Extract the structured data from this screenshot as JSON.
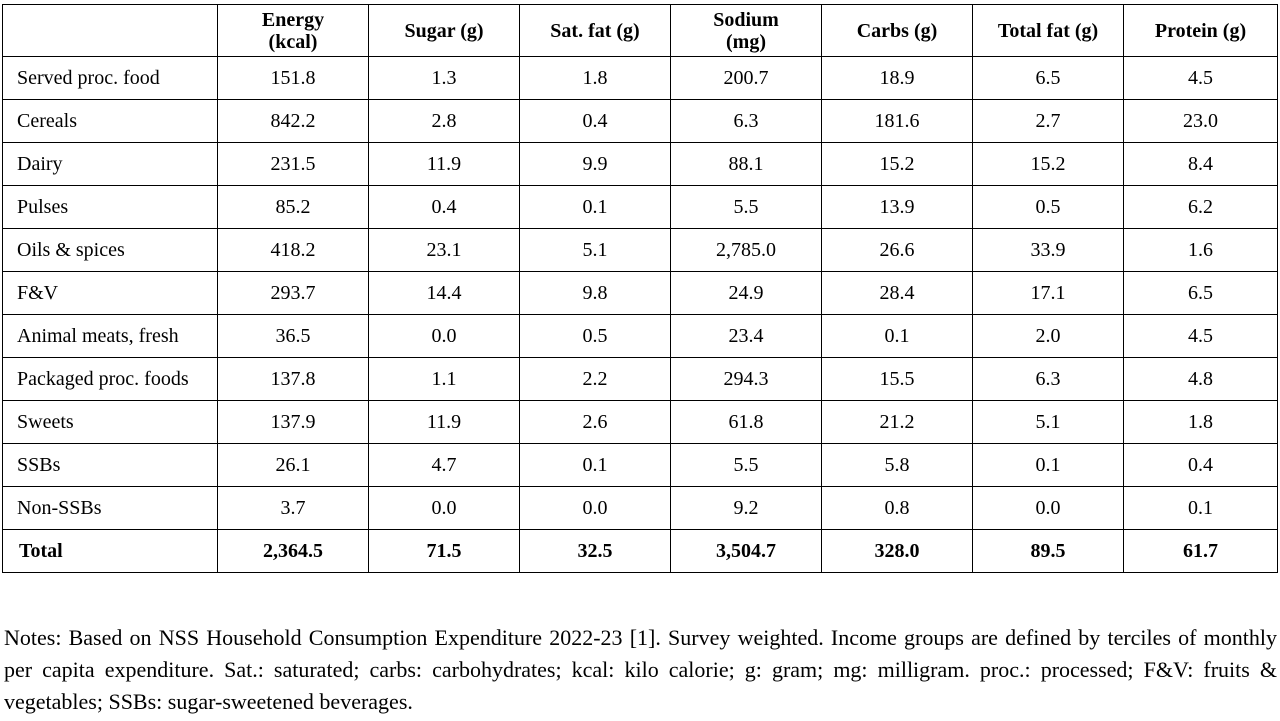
{
  "table": {
    "headers": [
      "",
      "Energy (kcal)",
      "Sugar (g)",
      "Sat. fat (g)",
      "Sodium (mg)",
      "Carbs (g)",
      "Total fat (g)",
      "Protein (g)"
    ],
    "rows": [
      {
        "label": "Served proc. food",
        "values": [
          "151.8",
          "1.3",
          "1.8",
          "200.7",
          "18.9",
          "6.5",
          "4.5"
        ]
      },
      {
        "label": "Cereals",
        "values": [
          "842.2",
          "2.8",
          "0.4",
          "6.3",
          "181.6",
          "2.7",
          "23.0"
        ]
      },
      {
        "label": "Dairy",
        "values": [
          "231.5",
          "11.9",
          "9.9",
          "88.1",
          "15.2",
          "15.2",
          "8.4"
        ]
      },
      {
        "label": "Pulses",
        "values": [
          "85.2",
          "0.4",
          "0.1",
          "5.5",
          "13.9",
          "0.5",
          "6.2"
        ]
      },
      {
        "label": "Oils & spices",
        "values": [
          "418.2",
          "23.1",
          "5.1",
          "2,785.0",
          "26.6",
          "33.9",
          "1.6"
        ]
      },
      {
        "label": "F&V",
        "values": [
          "293.7",
          "14.4",
          "9.8",
          "24.9",
          "28.4",
          "17.1",
          "6.5"
        ]
      },
      {
        "label": "Animal meats, fresh",
        "values": [
          "36.5",
          "0.0",
          "0.5",
          "23.4",
          "0.1",
          "2.0",
          "4.5"
        ]
      },
      {
        "label": "Packaged proc. foods",
        "values": [
          "137.8",
          "1.1",
          "2.2",
          "294.3",
          "15.5",
          "6.3",
          "4.8"
        ]
      },
      {
        "label": "Sweets",
        "values": [
          "137.9",
          "11.9",
          "2.6",
          "61.8",
          "21.2",
          "5.1",
          "1.8"
        ]
      },
      {
        "label": "SSBs",
        "values": [
          "26.1",
          "4.7",
          "0.1",
          "5.5",
          "5.8",
          "0.1",
          "0.4"
        ]
      },
      {
        "label": "Non-SSBs",
        "values": [
          "3.7",
          "0.0",
          "0.0",
          "9.2",
          "0.8",
          "0.0",
          "0.1"
        ]
      }
    ],
    "total": {
      "label": "Total",
      "values": [
        "2,364.5",
        "71.5",
        "32.5",
        "3,504.7",
        "328.0",
        "89.5",
        "61.7"
      ]
    }
  },
  "notes": "Notes: Based on NSS Household Consumption Expenditure 2022-23 [1]. Survey weighted. Income groups are defined by terciles of monthly per capita expenditure. Sat.: saturated; carbs: carbohydrates; kcal: kilo calorie; g: gram; mg: milligram. proc.: processed; F&V: fruits & vegetables; SSBs: sugar-sweetened beverages."
}
